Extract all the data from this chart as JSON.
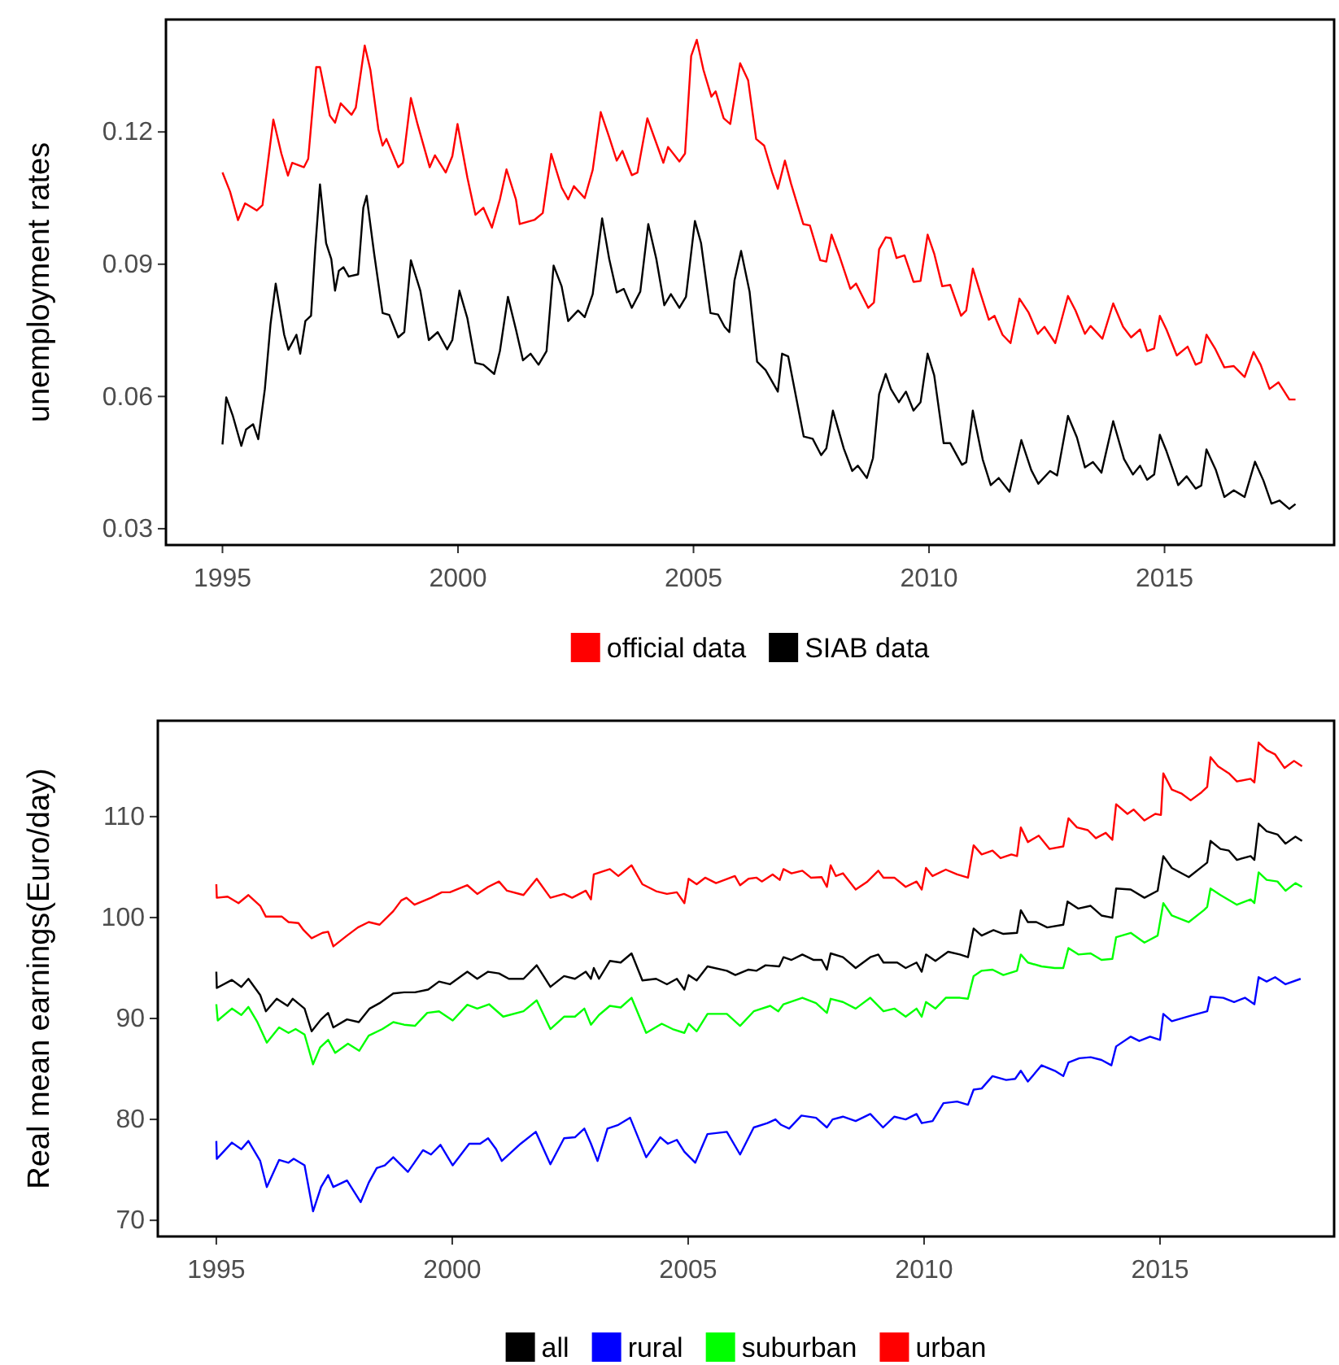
{
  "chart_data": [
    {
      "type": "line",
      "ylabel": "unemployment rates",
      "legend": "bottom",
      "xlim": [
        1993.8,
        2018.6
      ],
      "ylim": [
        0.0263,
        0.1455
      ],
      "xticks": [
        1995,
        2000,
        2005,
        2010,
        2015
      ],
      "yticks": [
        0.03,
        0.06,
        0.09,
        0.12
      ],
      "grid": false,
      "series": [
        {
          "name": "official data",
          "color": "#ff0000",
          "x": [
            1995.0,
            1995.16,
            1995.33,
            1995.48,
            1995.73,
            1995.85,
            1996.08,
            1996.25,
            1996.39,
            1996.48,
            1996.73,
            1996.82,
            1996.99,
            1997.07,
            1997.28,
            1997.39,
            1997.51,
            1997.74,
            1997.83,
            1998.02,
            1998.14,
            1998.31,
            1998.4,
            1998.48,
            1998.73,
            1998.83,
            1999.0,
            1999.14,
            1999.4,
            1999.51,
            1999.74,
            1999.88,
            1999.99,
            2000.2,
            2000.37,
            2000.54,
            2000.72,
            2000.89,
            2001.03,
            2001.23,
            2001.31,
            2001.63,
            2001.8,
            2001.98,
            2002.2,
            2002.34,
            2002.46,
            2002.69,
            2002.86,
            2003.03,
            2003.21,
            2003.37,
            2003.49,
            2003.69,
            2003.81,
            2004.02,
            2004.27,
            2004.36,
            2004.46,
            2004.7,
            2004.82,
            2004.95,
            2005.07,
            2005.21,
            2005.38,
            2005.47,
            2005.64,
            2005.78,
            2005.99,
            2006.16,
            2006.33,
            2006.5,
            2006.67,
            2006.79,
            2006.94,
            2007.07,
            2007.33,
            2007.47,
            2007.69,
            2007.82,
            2007.93,
            2008.1,
            2008.33,
            2008.45,
            2008.71,
            2008.83,
            2008.94,
            2009.08,
            2009.19,
            2009.31,
            2009.48,
            2009.67,
            2009.82,
            2009.97,
            2010.11,
            2010.28,
            2010.45,
            2010.68,
            2010.79,
            2010.93,
            2011.08,
            2011.27,
            2011.39,
            2011.56,
            2011.73,
            2011.92,
            2012.11,
            2012.31,
            2012.45,
            2012.68,
            2012.95,
            2013.11,
            2013.31,
            2013.43,
            2013.68,
            2013.91,
            2014.12,
            2014.29,
            2014.48,
            2014.63,
            2014.78,
            2014.9,
            2015.04,
            2015.26,
            2015.49,
            2015.66,
            2015.78,
            2015.89,
            2016.07,
            2016.27,
            2016.47,
            2016.7,
            2016.89,
            2017.04,
            2017.23,
            2017.42,
            2017.65,
            2017.78
          ],
          "values": [
            0.1108,
            0.1065,
            0.1,
            0.1038,
            0.1022,
            0.1034,
            0.1228,
            0.1151,
            0.1101,
            0.113,
            0.112,
            0.1139,
            0.1347,
            0.1347,
            0.1237,
            0.1221,
            0.1265,
            0.1239,
            0.1255,
            0.1396,
            0.1341,
            0.1206,
            0.1169,
            0.1184,
            0.112,
            0.113,
            0.1277,
            0.1218,
            0.112,
            0.1147,
            0.1108,
            0.1145,
            0.1218,
            0.1096,
            0.1012,
            0.1028,
            0.0983,
            0.1047,
            0.1115,
            0.1047,
            0.0991,
            0.1001,
            0.1016,
            0.115,
            0.1074,
            0.1047,
            0.1077,
            0.105,
            0.1114,
            0.1245,
            0.1188,
            0.1135,
            0.1157,
            0.1102,
            0.1108,
            0.1231,
            0.1157,
            0.113,
            0.1166,
            0.1133,
            0.1151,
            0.1372,
            0.1409,
            0.1341,
            0.128,
            0.1292,
            0.1231,
            0.1218,
            0.1356,
            0.1317,
            0.1184,
            0.1169,
            0.1108,
            0.1071,
            0.1135,
            0.1083,
            0.0991,
            0.0988,
            0.0909,
            0.0906,
            0.0967,
            0.0918,
            0.0844,
            0.0856,
            0.0801,
            0.0813,
            0.0934,
            0.0961,
            0.0959,
            0.0914,
            0.092,
            0.086,
            0.0862,
            0.0967,
            0.0924,
            0.085,
            0.0853,
            0.0783,
            0.0795,
            0.089,
            0.0838,
            0.0774,
            0.0783,
            0.074,
            0.0721,
            0.0822,
            0.0791,
            0.0742,
            0.0758,
            0.0721,
            0.0828,
            0.0795,
            0.0742,
            0.076,
            0.0731,
            0.0811,
            0.0758,
            0.0734,
            0.0752,
            0.0703,
            0.0709,
            0.0783,
            0.0752,
            0.0693,
            0.0713,
            0.0672,
            0.0678,
            0.074,
            0.0709,
            0.0666,
            0.0669,
            0.0644,
            0.0701,
            0.0672,
            0.0617,
            0.0632,
            0.0593,
            0.0593
          ]
        },
        {
          "name": "SIAB data",
          "color": "#000000",
          "x": [
            1995.0,
            1995.08,
            1995.22,
            1995.4,
            1995.5,
            1995.65,
            1995.76,
            1995.9,
            1996.02,
            1996.13,
            1996.31,
            1996.4,
            1996.57,
            1996.65,
            1996.76,
            1996.88,
            1996.97,
            1997.07,
            1997.2,
            1997.31,
            1997.39,
            1997.47,
            1997.57,
            1997.68,
            1997.88,
            1997.99,
            1998.06,
            1998.22,
            1998.4,
            1998.54,
            1998.73,
            1998.86,
            1999.0,
            1999.2,
            1999.38,
            1999.57,
            1999.77,
            1999.88,
            2000.03,
            2000.2,
            2000.37,
            2000.54,
            2000.77,
            2000.89,
            2001.06,
            2001.23,
            2001.38,
            2001.54,
            2001.71,
            2001.88,
            2002.03,
            2002.2,
            2002.34,
            2002.55,
            2002.69,
            2002.86,
            2003.06,
            2003.21,
            2003.37,
            2003.52,
            2003.69,
            2003.87,
            2004.04,
            2004.21,
            2004.38,
            2004.52,
            2004.7,
            2004.84,
            2005.03,
            2005.16,
            2005.36,
            2005.52,
            2005.66,
            2005.76,
            2005.87,
            2006.01,
            2006.19,
            2006.35,
            2006.53,
            2006.79,
            2006.88,
            2007.01,
            2007.34,
            2007.53,
            2007.71,
            2007.82,
            2007.96,
            2008.19,
            2008.37,
            2008.49,
            2008.68,
            2008.81,
            2008.94,
            2009.08,
            2009.19,
            2009.36,
            2009.51,
            2009.67,
            2009.82,
            2009.97,
            2010.11,
            2010.31,
            2010.45,
            2010.7,
            2010.79,
            2010.93,
            2011.14,
            2011.31,
            2011.48,
            2011.71,
            2011.96,
            2012.17,
            2012.32,
            2012.57,
            2012.72,
            2012.95,
            2013.14,
            2013.31,
            2013.48,
            2013.66,
            2013.91,
            2014.14,
            2014.33,
            2014.48,
            2014.63,
            2014.78,
            2014.9,
            2015.04,
            2015.29,
            2015.47,
            2015.66,
            2015.78,
            2015.89,
            2016.09,
            2016.27,
            2016.47,
            2016.7,
            2016.92,
            2017.1,
            2017.27,
            2017.44,
            2017.65,
            2017.78
          ],
          "values": [
            0.0491,
            0.0598,
            0.0556,
            0.0488,
            0.0525,
            0.0537,
            0.0503,
            0.0617,
            0.0764,
            0.0856,
            0.074,
            0.0706,
            0.074,
            0.0697,
            0.0771,
            0.0783,
            0.0936,
            0.1081,
            0.0948,
            0.0912,
            0.084,
            0.0885,
            0.0893,
            0.0872,
            0.0877,
            0.1028,
            0.1055,
            0.0924,
            0.0789,
            0.0785,
            0.0734,
            0.0746,
            0.0909,
            0.084,
            0.0728,
            0.0746,
            0.0707,
            0.0728,
            0.084,
            0.0777,
            0.0676,
            0.0672,
            0.0651,
            0.0703,
            0.0826,
            0.0752,
            0.0682,
            0.0697,
            0.0672,
            0.0703,
            0.0897,
            0.085,
            0.0771,
            0.0795,
            0.078,
            0.0832,
            0.1004,
            0.0912,
            0.0836,
            0.0844,
            0.0801,
            0.0838,
            0.0991,
            0.0912,
            0.0807,
            0.0832,
            0.0801,
            0.0826,
            0.0998,
            0.0948,
            0.0789,
            0.0786,
            0.0758,
            0.0746,
            0.0863,
            0.093,
            0.0838,
            0.0679,
            0.066,
            0.0611,
            0.0697,
            0.0691,
            0.0509,
            0.0504,
            0.0467,
            0.0482,
            0.0568,
            0.0482,
            0.0431,
            0.0443,
            0.0415,
            0.046,
            0.0605,
            0.0651,
            0.0617,
            0.0587,
            0.0611,
            0.0568,
            0.0587,
            0.0697,
            0.0648,
            0.0494,
            0.0494,
            0.0445,
            0.0451,
            0.0568,
            0.0457,
            0.0399,
            0.0415,
            0.0384,
            0.0501,
            0.0433,
            0.0402,
            0.0431,
            0.0421,
            0.0556,
            0.0507,
            0.0439,
            0.0451,
            0.0427,
            0.0544,
            0.0458,
            0.0423,
            0.0443,
            0.0411,
            0.0423,
            0.0513,
            0.0476,
            0.0399,
            0.0419,
            0.0391,
            0.0398,
            0.048,
            0.0433,
            0.0372,
            0.0387,
            0.0372,
            0.0452,
            0.0409,
            0.0357,
            0.0364,
            0.0345,
            0.0356
          ]
        }
      ]
    },
    {
      "type": "line",
      "ylabel": "Real mean earnings(Euro/day)",
      "legend": "bottom",
      "xlim": [
        1993.76,
        2018.69
      ],
      "ylim": [
        68.4,
        119.5
      ],
      "xticks": [
        1995,
        2000,
        2005,
        2010,
        2015
      ],
      "yticks": [
        70,
        80,
        90,
        100,
        110
      ],
      "grid": false,
      "series": [
        {
          "name": "all",
          "color": "#000000",
          "x": [
            1995.0,
            1995.01,
            1995.33,
            1995.53,
            1995.68,
            1995.93,
            1996.05,
            1996.28,
            1996.51,
            1996.62,
            1996.87,
            1997.02,
            1997.22,
            1997.37,
            1997.48,
            1997.77,
            1998.02,
            1998.25,
            1998.46,
            1998.75,
            1998.98,
            1999.21,
            1999.49,
            1999.72,
            1999.95,
            2000.32,
            2000.53,
            2000.76,
            2000.99,
            2001.2,
            2001.51,
            2001.79,
            2002.08,
            2002.37,
            2002.6,
            2002.83,
            2002.94,
            2003.0,
            2003.11,
            2003.34,
            2003.57,
            2003.8,
            2004.03,
            2004.32,
            2004.55,
            2004.76,
            2004.92,
            2005.01,
            2005.18,
            2005.41,
            2005.82,
            2006.0,
            2006.28,
            2006.45,
            2006.64,
            2006.93,
            2007.02,
            2007.19,
            2007.42,
            2007.66,
            2007.83,
            2007.94,
            2008.02,
            2008.28,
            2008.55,
            2008.86,
            2009.03,
            2009.14,
            2009.43,
            2009.61,
            2009.84,
            2009.95,
            2010.04,
            2010.24,
            2010.51,
            2010.76,
            2010.93,
            2011.05,
            2011.22,
            2011.47,
            2011.68,
            2011.97,
            2012.05,
            2012.2,
            2012.38,
            2012.61,
            2012.95,
            2013.04,
            2013.27,
            2013.53,
            2013.76,
            2013.99,
            2014.07,
            2014.38,
            2014.67,
            2014.95,
            2015.07,
            2015.25,
            2015.61,
            2015.93,
            2016.0,
            2016.07,
            2016.28,
            2016.46,
            2016.63,
            2016.92,
            2017.0,
            2017.09,
            2017.26,
            2017.49,
            2017.66,
            2017.87,
            2018.01
          ],
          "values": [
            94.63,
            93.02,
            93.82,
            93.13,
            93.93,
            92.32,
            90.71,
            91.95,
            91.25,
            91.95,
            90.98,
            88.73,
            89.91,
            90.55,
            89.11,
            89.91,
            89.64,
            90.98,
            91.52,
            92.48,
            92.59,
            92.59,
            92.86,
            93.66,
            93.39,
            94.63,
            93.93,
            94.63,
            94.46,
            93.93,
            93.93,
            95.27,
            93.13,
            94.2,
            93.93,
            94.63,
            93.93,
            95.0,
            93.93,
            95.7,
            95.54,
            96.45,
            93.77,
            93.93,
            93.39,
            93.93,
            92.86,
            94.3,
            93.77,
            95.16,
            94.73,
            94.3,
            94.84,
            94.73,
            95.27,
            95.16,
            96.07,
            95.8,
            96.34,
            95.8,
            95.8,
            94.84,
            96.45,
            96.07,
            95.0,
            96.07,
            96.34,
            95.54,
            95.54,
            95.0,
            95.54,
            94.63,
            96.34,
            95.7,
            96.61,
            96.34,
            96.07,
            98.91,
            98.21,
            98.75,
            98.38,
            98.48,
            100.73,
            99.55,
            99.55,
            99.02,
            99.29,
            101.59,
            100.89,
            101.16,
            100.2,
            99.98,
            102.88,
            102.77,
            101.96,
            102.66,
            106.09,
            104.91,
            104.0,
            105.18,
            105.45,
            107.59,
            106.79,
            106.63,
            105.71,
            106.09,
            105.71,
            109.3,
            108.55,
            108.23,
            107.32,
            108.02,
            107.59
          ]
        },
        {
          "name": "rural",
          "color": "#0000ff",
          "x": [
            1995.0,
            1995.01,
            1995.33,
            1995.53,
            1995.68,
            1995.93,
            1996.07,
            1996.33,
            1996.53,
            1996.64,
            1996.87,
            1997.05,
            1997.22,
            1997.37,
            1997.48,
            1997.77,
            1998.06,
            1998.23,
            1998.4,
            1998.57,
            1998.75,
            1999.06,
            1999.38,
            1999.55,
            1999.75,
            2000.01,
            2000.36,
            2000.59,
            2000.76,
            2000.93,
            2001.05,
            2001.45,
            2001.77,
            2002.08,
            2002.37,
            2002.6,
            2002.8,
            2002.94,
            2003.08,
            2003.29,
            2003.52,
            2003.77,
            2004.11,
            2004.41,
            2004.57,
            2004.76,
            2004.92,
            2005.15,
            2005.41,
            2005.82,
            2006.1,
            2006.39,
            2006.68,
            2006.85,
            2006.97,
            2007.14,
            2007.4,
            2007.71,
            2007.94,
            2008.06,
            2008.28,
            2008.55,
            2008.86,
            2009.13,
            2009.37,
            2009.61,
            2009.84,
            2009.95,
            2010.18,
            2010.41,
            2010.7,
            2010.93,
            2011.05,
            2011.22,
            2011.45,
            2011.74,
            2011.93,
            2012.05,
            2012.2,
            2012.49,
            2012.77,
            2012.95,
            2013.06,
            2013.29,
            2013.53,
            2013.76,
            2013.97,
            2014.07,
            2014.38,
            2014.56,
            2014.79,
            2015.0,
            2015.07,
            2015.25,
            2015.65,
            2016.0,
            2016.07,
            2016.34,
            2016.57,
            2016.8,
            2017.0,
            2017.09,
            2017.26,
            2017.44,
            2017.66,
            2017.98
          ],
          "values": [
            77.86,
            76.09,
            77.7,
            77.05,
            77.86,
            75.88,
            73.3,
            75.98,
            75.71,
            76.09,
            75.45,
            70.89,
            73.3,
            74.48,
            73.3,
            73.95,
            71.8,
            73.73,
            75.18,
            75.45,
            76.25,
            74.8,
            76.95,
            76.52,
            77.48,
            75.45,
            77.59,
            77.59,
            78.13,
            77.05,
            75.88,
            77.59,
            78.77,
            75.55,
            78.13,
            78.23,
            79.09,
            77.59,
            75.88,
            79.09,
            79.46,
            80.16,
            76.25,
            78.23,
            77.59,
            77.97,
            76.79,
            75.71,
            78.55,
            78.77,
            76.52,
            79.2,
            79.63,
            80.0,
            79.46,
            79.09,
            80.38,
            80.16,
            79.2,
            80.0,
            80.27,
            79.84,
            80.54,
            79.2,
            80.27,
            80.0,
            80.54,
            79.63,
            79.84,
            81.61,
            81.77,
            81.45,
            82.95,
            83.06,
            84.29,
            83.91,
            84.02,
            84.82,
            83.75,
            85.36,
            84.82,
            84.29,
            85.63,
            86.06,
            86.16,
            85.89,
            85.36,
            87.23,
            88.2,
            87.77,
            88.2,
            87.88,
            90.45,
            89.73,
            90.27,
            90.71,
            92.16,
            92.05,
            91.63,
            92.05,
            91.41,
            94.09,
            93.66,
            94.09,
            93.39,
            93.93
          ]
        },
        {
          "name": "suburban",
          "color": "#00ff00",
          "x": [
            1995.0,
            1995.03,
            1995.33,
            1995.53,
            1995.68,
            1995.87,
            1996.07,
            1996.33,
            1996.53,
            1996.68,
            1996.87,
            1997.05,
            1997.2,
            1997.37,
            1997.52,
            1997.79,
            1998.03,
            1998.23,
            1998.52,
            1998.75,
            1998.98,
            1999.21,
            1999.47,
            1999.72,
            2000.01,
            2000.32,
            2000.53,
            2000.78,
            2001.08,
            2001.51,
            2001.79,
            2002.08,
            2002.37,
            2002.6,
            2002.8,
            2002.94,
            2003.11,
            2003.34,
            2003.57,
            2003.8,
            2004.11,
            2004.44,
            2004.67,
            2004.92,
            2005.01,
            2005.18,
            2005.41,
            2005.82,
            2006.1,
            2006.39,
            2006.74,
            2006.91,
            2007.02,
            2007.42,
            2007.71,
            2007.94,
            2008.02,
            2008.28,
            2008.55,
            2008.86,
            2009.14,
            2009.37,
            2009.61,
            2009.84,
            2009.95,
            2010.04,
            2010.24,
            2010.46,
            2010.76,
            2010.93,
            2011.05,
            2011.22,
            2011.45,
            2011.68,
            2011.97,
            2012.05,
            2012.2,
            2012.49,
            2012.77,
            2012.95,
            2013.06,
            2013.27,
            2013.53,
            2013.76,
            2013.99,
            2014.07,
            2014.38,
            2014.67,
            2014.95,
            2015.07,
            2015.25,
            2015.61,
            2015.93,
            2016.0,
            2016.07,
            2016.28,
            2016.63,
            2016.92,
            2017.0,
            2017.09,
            2017.26,
            2017.49,
            2017.66,
            2017.87,
            2018.01
          ],
          "values": [
            91.41,
            89.8,
            90.98,
            90.34,
            91.14,
            89.64,
            87.61,
            89.11,
            88.57,
            88.95,
            88.41,
            85.46,
            87.13,
            87.88,
            86.59,
            87.5,
            86.8,
            88.3,
            88.95,
            89.64,
            89.38,
            89.27,
            90.55,
            90.71,
            89.8,
            91.36,
            90.98,
            91.41,
            90.18,
            90.71,
            91.79,
            88.95,
            90.18,
            90.18,
            90.98,
            89.38,
            90.34,
            91.25,
            91.09,
            92.05,
            88.57,
            89.48,
            88.95,
            88.57,
            89.48,
            88.73,
            90.45,
            90.45,
            89.27,
            90.71,
            91.25,
            90.71,
            91.41,
            92.05,
            91.52,
            90.55,
            91.95,
            91.63,
            90.98,
            92.05,
            90.71,
            90.98,
            90.18,
            90.98,
            90.18,
            91.63,
            90.98,
            92.05,
            92.05,
            91.95,
            94.2,
            94.73,
            94.84,
            94.3,
            94.73,
            96.34,
            95.54,
            95.16,
            95.0,
            95.0,
            96.98,
            96.34,
            96.45,
            95.8,
            95.91,
            98.05,
            98.48,
            97.52,
            98.21,
            101.43,
            100.2,
            99.55,
            100.73,
            101.05,
            102.88,
            102.23,
            101.27,
            101.8,
            101.43,
            104.48,
            103.73,
            103.57,
            102.66,
            103.41,
            103.04
          ]
        },
        {
          "name": "urban",
          "color": "#ff0000",
          "x": [
            1995.0,
            1995.01,
            1995.24,
            1995.47,
            1995.68,
            1995.93,
            1996.05,
            1996.39,
            1996.53,
            1996.74,
            1996.85,
            1997.02,
            1997.25,
            1997.37,
            1997.48,
            1997.77,
            1998.0,
            1998.23,
            1998.46,
            1998.75,
            1998.92,
            1999.03,
            1999.2,
            1999.55,
            1999.78,
            1999.95,
            2000.32,
            2000.53,
            2000.76,
            2000.99,
            2001.16,
            2001.51,
            2001.79,
            2002.08,
            2002.37,
            2002.54,
            2002.83,
            2002.94,
            2003.0,
            2003.34,
            2003.52,
            2003.8,
            2004.03,
            2004.32,
            2004.55,
            2004.76,
            2004.92,
            2005.01,
            2005.18,
            2005.36,
            2005.59,
            2005.99,
            2006.1,
            2006.28,
            2006.45,
            2006.56,
            2006.79,
            2006.94,
            2007.02,
            2007.19,
            2007.42,
            2007.6,
            2007.83,
            2007.94,
            2008.02,
            2008.13,
            2008.28,
            2008.55,
            2008.8,
            2009.03,
            2009.14,
            2009.37,
            2009.61,
            2009.84,
            2009.95,
            2010.04,
            2010.18,
            2010.46,
            2010.7,
            2010.93,
            2011.05,
            2011.22,
            2011.45,
            2011.62,
            2011.85,
            2011.97,
            2012.05,
            2012.2,
            2012.43,
            2012.66,
            2012.95,
            2013.06,
            2013.24,
            2013.47,
            2013.64,
            2013.85,
            2013.99,
            2014.07,
            2014.31,
            2014.44,
            2014.67,
            2014.9,
            2015.02,
            2015.07,
            2015.25,
            2015.45,
            2015.65,
            2015.88,
            2016.0,
            2016.07,
            2016.23,
            2016.46,
            2016.63,
            2016.92,
            2017.0,
            2017.09,
            2017.26,
            2017.44,
            2017.64,
            2017.84,
            2018.01
          ],
          "values": [
            103.3,
            101.96,
            102.07,
            101.43,
            102.23,
            101.16,
            100.09,
            100.09,
            99.55,
            99.45,
            98.75,
            97.95,
            98.48,
            98.59,
            97.14,
            98.21,
            99.02,
            99.55,
            99.29,
            100.63,
            101.7,
            101.96,
            101.27,
            101.96,
            102.5,
            102.5,
            103.2,
            102.34,
            103.04,
            103.57,
            102.66,
            102.23,
            103.84,
            101.96,
            102.34,
            101.96,
            102.66,
            101.8,
            104.27,
            104.8,
            104.11,
            105.18,
            103.3,
            102.61,
            102.34,
            102.5,
            101.43,
            103.84,
            103.3,
            103.95,
            103.41,
            104.11,
            103.2,
            103.84,
            103.95,
            103.57,
            104.27,
            103.73,
            104.8,
            104.38,
            104.64,
            103.95,
            104.0,
            103.04,
            105.18,
            104.11,
            104.38,
            102.77,
            103.57,
            104.64,
            103.95,
            103.95,
            103.04,
            103.57,
            102.77,
            104.91,
            104.11,
            104.75,
            104.27,
            103.95,
            107.16,
            106.25,
            106.63,
            105.88,
            106.25,
            106.09,
            108.93,
            107.48,
            108.12,
            106.79,
            107.05,
            109.84,
            108.93,
            108.66,
            107.86,
            108.39,
            107.7,
            111.23,
            110.27,
            110.7,
            109.62,
            110.27,
            110.16,
            114.29,
            112.68,
            112.3,
            111.61,
            112.41,
            112.95,
            115.89,
            114.98,
            114.29,
            113.48,
            113.75,
            113.38,
            117.34,
            116.59,
            116.16,
            114.82,
            115.52,
            114.98
          ]
        }
      ]
    }
  ]
}
